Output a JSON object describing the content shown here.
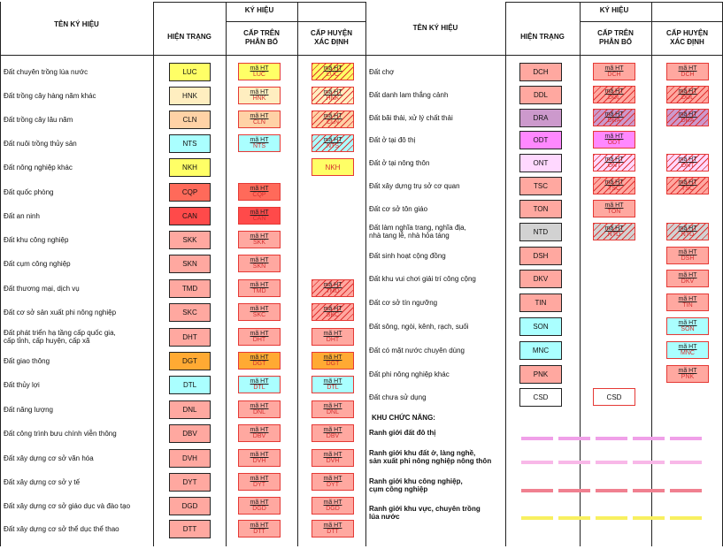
{
  "header": {
    "ten_ky_hieu": "TÊN KÝ HIỆU",
    "ky_hieu": "KÝ HIỆU",
    "hien_trang": "HIỆN TRẠNG",
    "cap_tren": "CẤP TRÊN\nPHÂN BỔ",
    "cap_huyen": "CẤP HUYỆN\nXÁC ĐỊNH"
  },
  "ht_top": "mã HT",
  "left_rows": [
    {
      "name": "Đất chuyên trồng lúa nước",
      "code": "LUC",
      "color": "#ffff66",
      "cap_tren": true,
      "cap_huyen": true,
      "hatch": true
    },
    {
      "name": "Đất trồng cây hàng năm khác",
      "code": "HNK",
      "color": "#ffeec0",
      "cap_tren": true,
      "cap_huyen": true,
      "hatch": true
    },
    {
      "name": "Đất trồng cây lâu năm",
      "code": "CLN",
      "color": "#ffd2a6",
      "cap_tren": true,
      "cap_huyen": true,
      "hatch": true
    },
    {
      "name": "Đất nuôi trồng thủy sản",
      "code": "NTS",
      "color": "#aaffff",
      "cap_tren": true,
      "cap_huyen": true,
      "hatch": true
    },
    {
      "name": "Đất nông nghiệp khác",
      "code": "NKH",
      "color": "#ffff66",
      "cap_tren": false,
      "cap_huyen": true,
      "hatch": false,
      "huyen_text": "NKH"
    },
    {
      "name": "Đất quốc phòng",
      "code": "CQP",
      "color": "#ff6a5a",
      "cap_tren": true,
      "cap_huyen": false,
      "hatch": false
    },
    {
      "name": "Đất an ninh",
      "code": "CAN",
      "color": "#ff4a4a",
      "cap_tren": true,
      "cap_huyen": false,
      "hatch": false
    },
    {
      "name": "Đất khu công nghiệp",
      "code": "SKK",
      "color": "#ffa8a0",
      "cap_tren": true,
      "cap_huyen": false,
      "hatch": false
    },
    {
      "name": "Đất cụm công nghiệp",
      "code": "SKN",
      "color": "#ffa8a0",
      "cap_tren": true,
      "cap_huyen": false,
      "hatch": false
    },
    {
      "name": "Đất thương mại, dịch vụ",
      "code": "TMD",
      "color": "#ffa8a0",
      "cap_tren": true,
      "cap_huyen": true,
      "hatch": true
    },
    {
      "name": "Đất cơ sở sản xuất phi nông nghiệp",
      "code": "SKC",
      "color": "#ffa8a0",
      "cap_tren": true,
      "cap_huyen": true,
      "hatch": true
    },
    {
      "name": "Đất phát triển hạ tầng cấp quốc gia,\ncấp tỉnh, cấp huyện, cấp xã",
      "code": "DHT",
      "color": "#ffa8a0",
      "cap_tren": true,
      "cap_huyen": true,
      "hatch": false
    },
    {
      "name": "Đất giao thông",
      "code": "DGT",
      "color": "#ffaa33",
      "cap_tren": true,
      "cap_huyen": true,
      "hatch": false
    },
    {
      "name": "Đất thủy lợi",
      "code": "DTL",
      "color": "#aaffff",
      "cap_tren": true,
      "cap_huyen": true,
      "hatch": false
    },
    {
      "name": "Đất năng lượng",
      "code": "DNL",
      "color": "#ffa8a0",
      "cap_tren": true,
      "cap_huyen": true,
      "hatch": false
    },
    {
      "name": "Đất công trình bưu chính viễn thông",
      "code": "DBV",
      "color": "#ffa8a0",
      "cap_tren": true,
      "cap_huyen": true,
      "hatch": false
    },
    {
      "name": "Đất xây dựng cơ sở văn hóa",
      "code": "DVH",
      "color": "#ffa8a0",
      "cap_tren": true,
      "cap_huyen": true,
      "hatch": false
    },
    {
      "name": "Đất xây dựng cơ sở y tế",
      "code": "DYT",
      "color": "#ffa8a0",
      "cap_tren": true,
      "cap_huyen": true,
      "hatch": false
    },
    {
      "name": "Đất xây dựng cơ sở giáo dục và đào tạo",
      "code": "DGD",
      "color": "#ffa8a0",
      "cap_tren": true,
      "cap_huyen": true,
      "hatch": false
    },
    {
      "name": "Đất xây dựng cơ sở thể dục thể thao",
      "code": "DTT",
      "color": "#ffa8a0",
      "cap_tren": true,
      "cap_huyen": true,
      "hatch": false
    }
  ],
  "right_rows": [
    {
      "name": "Đất chợ",
      "code": "DCH",
      "color": "#ffa8a0",
      "cap_tren": true,
      "cap_huyen": true,
      "hatch": false
    },
    {
      "name": "Đất danh lam thắng cảnh",
      "code": "DDL",
      "color": "#ffa8a0",
      "cap_tren": true,
      "cap_huyen": true,
      "hatch": true
    },
    {
      "name": "Đất bãi thải, xử lý chất thải",
      "code": "DRA",
      "color": "#cc99cc",
      "cap_tren": true,
      "cap_huyen": true,
      "hatch": true
    },
    {
      "name": "Đất ở tại đô thị",
      "code": "ODT",
      "color": "#ff88ff",
      "cap_tren": true,
      "cap_huyen": false,
      "hatch": false
    },
    {
      "name": "Đất ở tại nông thôn",
      "code": "ONT",
      "color": "#ffd8ff",
      "cap_tren": true,
      "cap_huyen": true,
      "hatch": true
    },
    {
      "name": "Đất xây dựng trụ sở cơ quan",
      "code": "TSC",
      "color": "#ffa8a0",
      "cap_tren": true,
      "cap_huyen": true,
      "hatch": true
    },
    {
      "name": "Đất cơ sở tôn giáo",
      "code": "TON",
      "color": "#ffa8a0",
      "cap_tren": true,
      "cap_huyen": false,
      "hatch": false
    },
    {
      "name": "Đất làm nghĩa trang, nghĩa địa,\nnhà tang lễ, nhà hỏa táng",
      "code": "NTD",
      "color": "#d2d2d2",
      "cap_tren": true,
      "cap_huyen": true,
      "hatch": true
    },
    {
      "name": "Đất sinh hoạt cộng đồng",
      "code": "DSH",
      "color": "#ffa8a0",
      "cap_tren": false,
      "cap_huyen": true,
      "hatch": false
    },
    {
      "name": "Đất khu vui chơi giải trí công cộng",
      "code": "DKV",
      "color": "#ffa8a0",
      "cap_tren": false,
      "cap_huyen": true,
      "hatch": false
    },
    {
      "name": "Đất cơ sở tín ngưỡng",
      "code": "TIN",
      "color": "#ffa8a0",
      "cap_tren": false,
      "cap_huyen": true,
      "hatch": false
    },
    {
      "name": "Đất sông, ngòi, kênh, rạch, suối",
      "code": "SON",
      "color": "#aaffff",
      "cap_tren": false,
      "cap_huyen": true,
      "hatch": false
    },
    {
      "name": "Đất có mặt nước chuyên dùng",
      "code": "MNC",
      "color": "#aaffff",
      "cap_tren": false,
      "cap_huyen": true,
      "hatch": false
    },
    {
      "name": "Đất phi nông nghiệp khác",
      "code": "PNK",
      "color": "#ffa8a0",
      "cap_tren": false,
      "cap_huyen": true,
      "hatch": false
    },
    {
      "name": "Đất chưa sử dụng",
      "code": "CSD",
      "color": "#ffffff",
      "cap_tren": false,
      "cap_huyen": false,
      "hatch": false,
      "tren_text": "CSD"
    }
  ],
  "functional": {
    "title": "KHU CHỨC NĂNG:",
    "items": [
      {
        "label": "Ranh giới đất đô thị",
        "color": "#f0a0e8"
      },
      {
        "label": "Ranh giới khu đất ở, làng nghề,\nsản xuất phi nông nghiệp nông thôn",
        "color": "#f8b8e8"
      },
      {
        "label": "Ranh giới khu công nghiệp,\ncụm công nghiệp",
        "color": "#f08090"
      },
      {
        "label": "Ranh giới khu vực, chuyên trồng\nlúa nước",
        "color": "#f8f060"
      }
    ]
  }
}
